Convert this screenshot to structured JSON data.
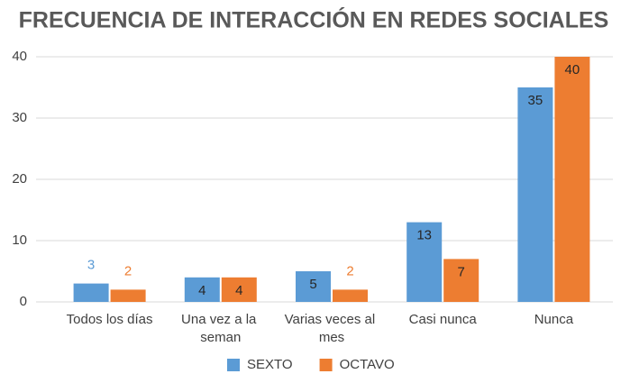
{
  "chart_data": {
    "type": "bar",
    "title": "FRECUENCIA DE INTERACCIÓN EN REDES SOCIALES",
    "categories": [
      "Todos los días",
      "Una vez a la seman",
      "Varias veces al mes",
      "Casi nunca",
      "Nunca"
    ],
    "series": [
      {
        "name": "SEXTO",
        "color": "#5b9bd5",
        "values": [
          3,
          4,
          5,
          13,
          35
        ]
      },
      {
        "name": "OCTAVO",
        "color": "#ed7d31",
        "values": [
          2,
          4,
          2,
          7,
          40
        ]
      }
    ],
    "ylim": [
      0,
      40
    ],
    "yticks": [
      0,
      10,
      20,
      30,
      40
    ],
    "grid": true,
    "legend": "bottom"
  }
}
